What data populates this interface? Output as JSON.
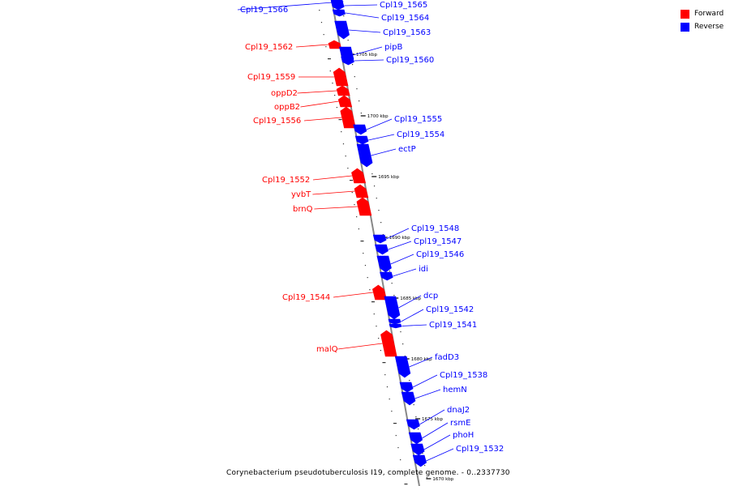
{
  "title": "Corynebacterium pseudotuberculosis I19, complete genome. - 0..2337730",
  "legend": [
    {
      "label": "Forward",
      "color": "#ff0000"
    },
    {
      "label": "Reverse",
      "color": "#0000ff"
    }
  ],
  "colors": {
    "forward": "#ff0000",
    "reverse": "#0000ff",
    "backbone": "#888888"
  },
  "genes": [
    {
      "name": "Cpl19_1566",
      "strand": "reverse"
    },
    {
      "name": "Cpl19_1565",
      "strand": "reverse"
    },
    {
      "name": "Cpl19_1564",
      "strand": "reverse"
    },
    {
      "name": "Cpl19_1563",
      "strand": "reverse"
    },
    {
      "name": "Cpl19_1562",
      "strand": "forward"
    },
    {
      "name": "pipB",
      "strand": "reverse"
    },
    {
      "name": "Cpl19_1560",
      "strand": "reverse"
    },
    {
      "name": "Cpl19_1559",
      "strand": "forward"
    },
    {
      "name": "oppD2",
      "strand": "forward"
    },
    {
      "name": "oppB2",
      "strand": "forward"
    },
    {
      "name": "Cpl19_1556",
      "strand": "forward"
    },
    {
      "name": "Cpl19_1555",
      "strand": "reverse"
    },
    {
      "name": "Cpl19_1554",
      "strand": "reverse"
    },
    {
      "name": "ectP",
      "strand": "reverse"
    },
    {
      "name": "Cpl19_1552",
      "strand": "forward"
    },
    {
      "name": "yvbT",
      "strand": "forward"
    },
    {
      "name": "brnQ",
      "strand": "forward"
    },
    {
      "name": "Cpl19_1548",
      "strand": "reverse"
    },
    {
      "name": "Cpl19_1547",
      "strand": "reverse"
    },
    {
      "name": "Cpl19_1546",
      "strand": "reverse"
    },
    {
      "name": "idi",
      "strand": "reverse"
    },
    {
      "name": "Cpl19_1544",
      "strand": "forward"
    },
    {
      "name": "dcp",
      "strand": "reverse"
    },
    {
      "name": "Cpl19_1542",
      "strand": "reverse"
    },
    {
      "name": "Cpl19_1541",
      "strand": "reverse"
    },
    {
      "name": "malQ",
      "strand": "forward"
    },
    {
      "name": "fadD3",
      "strand": "reverse"
    },
    {
      "name": "Cpl19_1538",
      "strand": "reverse"
    },
    {
      "name": "hemN",
      "strand": "reverse"
    },
    {
      "name": "dnaJ2",
      "strand": "reverse"
    },
    {
      "name": "rsmE",
      "strand": "reverse"
    },
    {
      "name": "phoH",
      "strand": "reverse"
    },
    {
      "name": "Cpl19_1532",
      "strand": "reverse"
    }
  ],
  "ticks": [
    "1705 kbp",
    "1700 kbp",
    "1695 kbp",
    "1690 kbp",
    "1685 kbp",
    "1680 kbp",
    "1675 kbp",
    "1670 kbp"
  ]
}
